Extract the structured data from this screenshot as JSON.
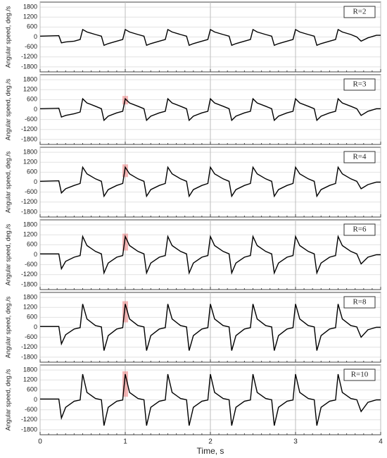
{
  "chart_data": [
    {
      "type": "line",
      "annotation": "R=2",
      "ylabel": "Angular speed, deg./s",
      "xlim": [
        0,
        4
      ],
      "xticks": [
        0,
        1,
        2,
        3,
        4
      ],
      "ylim": [
        -2100,
        2100
      ],
      "yticks": [
        -1800,
        -1200,
        -600,
        0,
        600,
        1200,
        1800
      ],
      "grid": true,
      "x": [
        0,
        0.22,
        0.25,
        0.3,
        0.4,
        0.47,
        0.5,
        0.55,
        0.65,
        0.72,
        0.75,
        0.8,
        0.9,
        0.97,
        1.0,
        1.05,
        1.15,
        1.22,
        1.25,
        1.3,
        1.4,
        1.47,
        1.5,
        1.55,
        1.65,
        1.72,
        1.75,
        1.8,
        1.9,
        1.97,
        2.0,
        2.05,
        2.15,
        2.22,
        2.25,
        2.3,
        2.4,
        2.47,
        2.5,
        2.55,
        2.65,
        2.72,
        2.75,
        2.8,
        2.9,
        2.97,
        3.0,
        3.05,
        3.15,
        3.22,
        3.25,
        3.3,
        3.4,
        3.47,
        3.5,
        3.55,
        3.65,
        3.72,
        3.77,
        3.85,
        3.95,
        4.0
      ],
      "series": [
        {
          "color": "#000000",
          "values": [
            50,
            80,
            -350,
            -300,
            -250,
            -150,
            450,
            300,
            150,
            50,
            -500,
            -400,
            -250,
            -150,
            450,
            300,
            150,
            50,
            -500,
            -400,
            -250,
            -150,
            450,
            300,
            150,
            50,
            -500,
            -400,
            -250,
            -150,
            450,
            300,
            150,
            50,
            -500,
            -400,
            -250,
            -150,
            450,
            300,
            150,
            50,
            -500,
            -400,
            -250,
            -150,
            450,
            300,
            150,
            50,
            -500,
            -400,
            -250,
            -150,
            450,
            300,
            150,
            0,
            -250,
            -50,
            100,
            100
          ]
        }
      ]
    },
    {
      "type": "line",
      "annotation": "R=3",
      "ylabel": "Angular speed, deg./s",
      "xlim": [
        0,
        4
      ],
      "xticks": [
        0,
        1,
        2,
        3,
        4
      ],
      "ylim": [
        -2100,
        2100
      ],
      "yticks": [
        -1800,
        -1200,
        -600,
        0,
        600,
        1200,
        1800
      ],
      "grid": true,
      "x": [
        0,
        0.22,
        0.25,
        0.3,
        0.4,
        0.47,
        0.5,
        0.55,
        0.65,
        0.72,
        0.75,
        0.8,
        0.9,
        0.97,
        1.0,
        1.05,
        1.15,
        1.22,
        1.25,
        1.3,
        1.4,
        1.47,
        1.5,
        1.55,
        1.65,
        1.72,
        1.75,
        1.8,
        1.9,
        1.97,
        2.0,
        2.05,
        2.15,
        2.22,
        2.25,
        2.3,
        2.4,
        2.47,
        2.5,
        2.55,
        2.65,
        2.72,
        2.75,
        2.8,
        2.9,
        2.97,
        3.0,
        3.05,
        3.15,
        3.22,
        3.25,
        3.3,
        3.4,
        3.47,
        3.5,
        3.55,
        3.65,
        3.72,
        3.77,
        3.85,
        3.95,
        4.0
      ],
      "series": [
        {
          "color": "#000000",
          "values": [
            50,
            80,
            -450,
            -350,
            -250,
            -150,
            650,
            400,
            200,
            50,
            -650,
            -400,
            -200,
            -100,
            650,
            400,
            200,
            50,
            -650,
            -400,
            -200,
            -100,
            650,
            400,
            200,
            50,
            -650,
            -400,
            -200,
            -100,
            650,
            400,
            200,
            50,
            -650,
            -400,
            -200,
            -100,
            650,
            400,
            200,
            50,
            -650,
            -400,
            -200,
            -100,
            650,
            400,
            200,
            50,
            -650,
            -400,
            -200,
            -100,
            650,
            400,
            200,
            50,
            -350,
            -100,
            50,
            50
          ]
        }
      ]
    },
    {
      "type": "line",
      "annotation": "R=4",
      "ylabel": "Angular speed, deg./s",
      "xlim": [
        0,
        4
      ],
      "xticks": [
        0,
        1,
        2,
        3,
        4
      ],
      "ylim": [
        -2100,
        2100
      ],
      "yticks": [
        -1800,
        -1200,
        -600,
        0,
        600,
        1200,
        1800
      ],
      "grid": true,
      "x": [
        0,
        0.22,
        0.25,
        0.3,
        0.4,
        0.47,
        0.5,
        0.55,
        0.65,
        0.72,
        0.75,
        0.8,
        0.9,
        0.97,
        1.0,
        1.05,
        1.15,
        1.22,
        1.25,
        1.3,
        1.4,
        1.47,
        1.5,
        1.55,
        1.65,
        1.72,
        1.75,
        1.8,
        1.9,
        1.97,
        2.0,
        2.05,
        2.15,
        2.22,
        2.25,
        2.3,
        2.4,
        2.47,
        2.5,
        2.55,
        2.65,
        2.72,
        2.75,
        2.8,
        2.9,
        2.97,
        3.0,
        3.05,
        3.15,
        3.22,
        3.25,
        3.3,
        3.4,
        3.47,
        3.5,
        3.55,
        3.65,
        3.72,
        3.77,
        3.85,
        3.95,
        4.0
      ],
      "series": [
        {
          "color": "#000000",
          "values": [
            50,
            80,
            -650,
            -400,
            -200,
            -80,
            900,
            500,
            200,
            50,
            -850,
            -450,
            -200,
            -80,
            900,
            500,
            200,
            50,
            -850,
            -450,
            -200,
            -80,
            900,
            500,
            200,
            50,
            -850,
            -450,
            -200,
            -80,
            900,
            500,
            200,
            50,
            -850,
            -450,
            -200,
            -80,
            900,
            500,
            200,
            50,
            -850,
            -450,
            -200,
            -80,
            900,
            500,
            200,
            50,
            -850,
            -450,
            -200,
            -80,
            900,
            500,
            200,
            50,
            -400,
            -150,
            0,
            0
          ]
        }
      ]
    },
    {
      "type": "line",
      "annotation": "R=6",
      "ylabel": "Angular speed, deg./s",
      "xlim": [
        0,
        4
      ],
      "xticks": [
        0,
        1,
        2,
        3,
        4
      ],
      "ylim": [
        -2100,
        2100
      ],
      "yticks": [
        -1800,
        -1200,
        -600,
        0,
        600,
        1200,
        1800
      ],
      "grid": true,
      "x": [
        0,
        0.22,
        0.25,
        0.3,
        0.4,
        0.47,
        0.5,
        0.55,
        0.65,
        0.72,
        0.75,
        0.8,
        0.9,
        0.97,
        1.0,
        1.05,
        1.15,
        1.22,
        1.25,
        1.3,
        1.4,
        1.47,
        1.5,
        1.55,
        1.65,
        1.72,
        1.75,
        1.8,
        1.9,
        1.97,
        2.0,
        2.05,
        2.15,
        2.22,
        2.25,
        2.3,
        2.4,
        2.47,
        2.5,
        2.55,
        2.65,
        2.72,
        2.75,
        2.8,
        2.9,
        2.97,
        3.0,
        3.05,
        3.15,
        3.22,
        3.25,
        3.3,
        3.4,
        3.47,
        3.5,
        3.55,
        3.65,
        3.72,
        3.77,
        3.85,
        3.95,
        4.0
      ],
      "series": [
        {
          "color": "#000000",
          "values": [
            50,
            50,
            -850,
            -400,
            -150,
            -50,
            1100,
            550,
            200,
            50,
            -1100,
            -500,
            -150,
            -50,
            1100,
            550,
            200,
            50,
            -1100,
            -500,
            -150,
            -50,
            1100,
            550,
            200,
            50,
            -1100,
            -500,
            -150,
            -50,
            1100,
            550,
            200,
            50,
            -1100,
            -500,
            -150,
            -50,
            1100,
            550,
            200,
            50,
            -1100,
            -500,
            -150,
            -50,
            1100,
            550,
            200,
            50,
            -1100,
            -500,
            -150,
            -50,
            1100,
            550,
            200,
            50,
            -550,
            -150,
            0,
            0
          ]
        }
      ]
    },
    {
      "type": "line",
      "annotation": "R=8",
      "ylabel": "Angular speed, deg./s",
      "xlim": [
        0,
        4
      ],
      "xticks": [
        0,
        1,
        2,
        3,
        4
      ],
      "ylim": [
        -2100,
        2100
      ],
      "yticks": [
        -1800,
        -1200,
        -600,
        0,
        600,
        1200,
        1800
      ],
      "grid": true,
      "x": [
        0,
        0.22,
        0.25,
        0.3,
        0.4,
        0.47,
        0.5,
        0.55,
        0.65,
        0.72,
        0.75,
        0.8,
        0.9,
        0.97,
        1.0,
        1.05,
        1.15,
        1.22,
        1.25,
        1.3,
        1.4,
        1.47,
        1.5,
        1.55,
        1.65,
        1.72,
        1.75,
        1.8,
        1.9,
        1.97,
        2.0,
        2.05,
        2.15,
        2.22,
        2.25,
        2.3,
        2.4,
        2.47,
        2.5,
        2.55,
        2.65,
        2.72,
        2.75,
        2.8,
        2.9,
        2.97,
        3.0,
        3.05,
        3.15,
        3.22,
        3.25,
        3.3,
        3.4,
        3.47,
        3.5,
        3.55,
        3.65,
        3.72,
        3.77,
        3.85,
        3.95,
        4.0
      ],
      "series": [
        {
          "color": "#000000",
          "values": [
            50,
            50,
            -1000,
            -450,
            -100,
            -20,
            1400,
            500,
            100,
            20,
            -1400,
            -500,
            -100,
            -20,
            1400,
            500,
            100,
            20,
            -1400,
            -500,
            -100,
            -20,
            1400,
            500,
            100,
            20,
            -1400,
            -500,
            -100,
            -20,
            1400,
            500,
            100,
            20,
            -1400,
            -500,
            -100,
            -20,
            1400,
            500,
            100,
            20,
            -1400,
            -500,
            -100,
            -20,
            1400,
            500,
            100,
            20,
            -1400,
            -500,
            -100,
            -20,
            1400,
            500,
            100,
            20,
            -600,
            -150,
            0,
            0
          ]
        }
      ]
    },
    {
      "type": "line",
      "annotation": "R=10",
      "ylabel": "Angular speed, deg./s",
      "xlabel": "Time, s",
      "xlim": [
        0,
        4
      ],
      "xticks": [
        0,
        1,
        2,
        3,
        4
      ],
      "ylim": [
        -2100,
        2100
      ],
      "yticks": [
        -1800,
        -1200,
        -600,
        0,
        600,
        1200,
        1800
      ],
      "grid": true,
      "x": [
        0,
        0.22,
        0.25,
        0.3,
        0.4,
        0.47,
        0.5,
        0.55,
        0.65,
        0.72,
        0.75,
        0.8,
        0.9,
        0.97,
        1.0,
        1.05,
        1.15,
        1.22,
        1.25,
        1.3,
        1.4,
        1.47,
        1.5,
        1.55,
        1.65,
        1.72,
        1.75,
        1.8,
        1.9,
        1.97,
        2.0,
        2.05,
        2.15,
        2.22,
        2.25,
        2.3,
        2.4,
        2.47,
        2.5,
        2.55,
        2.65,
        2.72,
        2.75,
        2.8,
        2.9,
        2.97,
        3.0,
        3.05,
        3.15,
        3.22,
        3.25,
        3.3,
        3.4,
        3.47,
        3.5,
        3.55,
        3.65,
        3.72,
        3.77,
        3.85,
        3.95,
        4.0
      ],
      "series": [
        {
          "color": "#000000",
          "values": [
            50,
            50,
            -1100,
            -450,
            -80,
            -10,
            1550,
            450,
            80,
            10,
            -1550,
            -450,
            -80,
            -10,
            1550,
            450,
            80,
            10,
            -1550,
            -450,
            -80,
            -10,
            1550,
            450,
            80,
            10,
            -1550,
            -450,
            -80,
            -10,
            1550,
            450,
            80,
            10,
            -1550,
            -450,
            -80,
            -10,
            1550,
            450,
            80,
            10,
            -1550,
            -450,
            -80,
            -10,
            1550,
            450,
            80,
            10,
            -1550,
            -450,
            -80,
            -10,
            1550,
            450,
            80,
            10,
            -700,
            -150,
            0,
            0
          ]
        }
      ]
    }
  ]
}
